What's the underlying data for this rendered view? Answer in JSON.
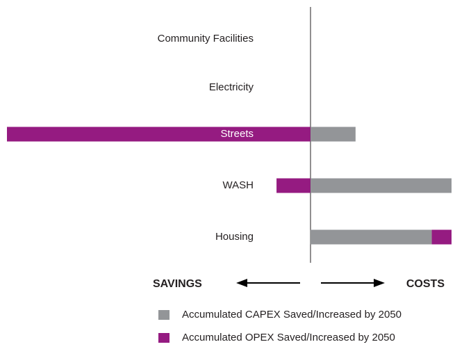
{
  "chart_data": {
    "type": "diverging-bar",
    "categories": [
      "Community Facilities",
      "Electricity",
      "Streets",
      "WASH",
      "Housing"
    ],
    "series": [
      {
        "name": "Accumulated CAPEX Saved/Increased by 2050",
        "color": "#939598",
        "values": [
          0,
          0,
          32,
          100,
          86
        ]
      },
      {
        "name": "Accumulated OPEX Saved/Increased by 2050",
        "color": "#951b81",
        "values": [
          0,
          0,
          -215,
          -24,
          14
        ]
      }
    ],
    "left_label": "SAVINGS",
    "right_label": "COSTS"
  }
}
